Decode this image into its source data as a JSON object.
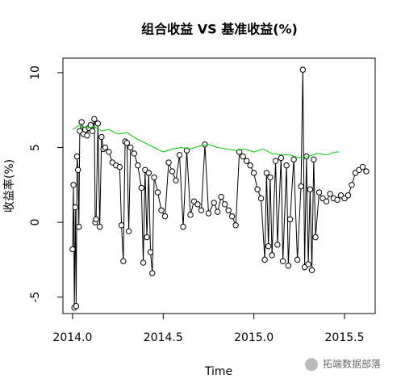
{
  "chart_data": {
    "type": "line",
    "title": "组合收益 VS 基准收益(%)",
    "x_label": "Time",
    "y_label": "收益率(%)",
    "annotation": "拓端数据部落",
    "xlim": [
      2013.947,
      2015.669
    ],
    "ylim": [
      -6.1,
      10.97
    ],
    "xticks": [
      {
        "value": 2014.0,
        "label": "2014.0"
      },
      {
        "value": 2014.5,
        "label": "2014.5"
      },
      {
        "value": 2015.0,
        "label": "2015.0"
      },
      {
        "value": 2015.5,
        "label": "2015.5"
      }
    ],
    "yticks": [
      -5,
      0,
      5,
      10
    ],
    "series": [
      {
        "color": "#000000",
        "markers": true,
        "x": [
          2014.0,
          2014.005,
          2014.01,
          2014.015,
          2014.02,
          2014.025,
          2014.03,
          2014.035,
          2014.04,
          2014.05,
          2014.06,
          2014.07,
          2014.08,
          2014.09,
          2014.1,
          2014.11,
          2014.12,
          2014.125,
          2014.13,
          2014.14,
          2014.15,
          2014.16,
          2014.17,
          2014.18,
          2014.2,
          2014.22,
          2014.24,
          2014.26,
          2014.27,
          2014.28,
          2014.29,
          2014.3,
          2014.31,
          2014.32,
          2014.34,
          2014.36,
          2014.38,
          2014.39,
          2014.4,
          2014.41,
          2014.42,
          2014.43,
          2014.44,
          2014.45,
          2014.47,
          2014.49,
          2014.51,
          2014.53,
          2014.55,
          2014.57,
          2014.59,
          2014.61,
          2014.63,
          2014.65,
          2014.67,
          2014.69,
          2014.71,
          2014.73,
          2014.75,
          2014.78,
          2014.8,
          2014.82,
          2014.84,
          2014.86,
          2014.88,
          2014.9,
          2014.92,
          2014.94,
          2014.96,
          2014.98,
          2015.0,
          2015.02,
          2015.04,
          2015.06,
          2015.07,
          2015.08,
          2015.09,
          2015.1,
          2015.12,
          2015.13,
          2015.15,
          2015.16,
          2015.18,
          2015.19,
          2015.2,
          2015.22,
          2015.24,
          2015.26,
          2015.27,
          2015.28,
          2015.29,
          2015.3,
          2015.31,
          2015.32,
          2015.33,
          2015.34,
          2015.36,
          2015.38,
          2015.4,
          2015.42,
          2015.44,
          2015.46,
          2015.48,
          2015.5,
          2015.52,
          2015.54,
          2015.56,
          2015.58,
          2015.6,
          2015.62
        ],
        "values": [
          -1.8,
          2.5,
          -5.7,
          1.0,
          -5.6,
          4.4,
          3.5,
          -0.3,
          6.1,
          6.7,
          5.9,
          6.2,
          5.8,
          6.3,
          6.5,
          6.1,
          6.9,
          0.0,
          0.2,
          6.6,
          -0.3,
          5.7,
          4.9,
          5.0,
          4.7,
          4.0,
          3.8,
          3.7,
          -0.2,
          -2.6,
          5.4,
          5.3,
          -0.6,
          5.0,
          4.6,
          3.8,
          2.3,
          -2.7,
          3.5,
          -1.0,
          3.3,
          -2.0,
          -3.4,
          3.0,
          2.0,
          0.8,
          0.4,
          4.0,
          3.4,
          2.8,
          4.5,
          -0.3,
          4.8,
          0.5,
          1.4,
          1.2,
          0.8,
          5.2,
          0.6,
          1.3,
          0.7,
          1.7,
          1.2,
          0.8,
          0.4,
          -0.2,
          4.7,
          4.4,
          4.1,
          3.8,
          3.3,
          2.2,
          1.6,
          -2.5,
          3.3,
          -1.6,
          3.0,
          -2.2,
          4.1,
          -1.5,
          4.3,
          -2.6,
          3.8,
          -2.9,
          0.2,
          4.2,
          -2.5,
          2.4,
          10.2,
          -3.0,
          4.4,
          -2.8,
          2.2,
          -3.2,
          4.2,
          -1.0,
          2.0,
          1.6,
          1.4,
          1.9,
          1.6,
          1.5,
          1.8,
          1.6,
          1.8,
          2.5,
          3.3,
          3.5,
          3.7,
          3.4
        ]
      },
      {
        "color": "#00cc00",
        "markers": false,
        "x": [
          2014.0,
          2014.04,
          2014.08,
          2014.12,
          2014.16,
          2014.2,
          2014.25,
          2014.3,
          2014.35,
          2014.4,
          2014.45,
          2014.5,
          2014.55,
          2014.6,
          2014.65,
          2014.7,
          2014.75,
          2014.8,
          2014.85,
          2014.9,
          2014.95,
          2015.0,
          2015.05,
          2015.1,
          2015.15,
          2015.2,
          2015.25,
          2015.3,
          2015.35,
          2015.4,
          2015.45,
          2015.47
        ],
        "values": [
          6.2,
          6.5,
          6.3,
          6.4,
          6.1,
          6.2,
          5.9,
          6.0,
          5.6,
          5.3,
          5.0,
          4.7,
          4.9,
          5.0,
          4.9,
          5.1,
          5.2,
          5.0,
          4.9,
          4.8,
          4.9,
          4.7,
          4.9,
          4.6,
          4.5,
          4.5,
          4.3,
          4.4,
          4.6,
          4.5,
          4.7,
          4.7
        ]
      }
    ]
  }
}
